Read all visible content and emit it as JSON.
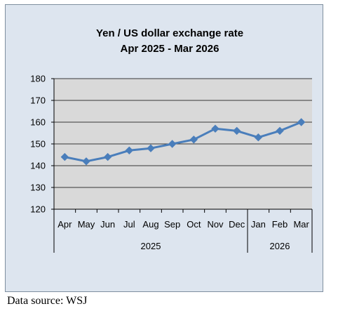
{
  "chart_data": {
    "type": "line",
    "title_line1": "Yen / US dollar exchange rate",
    "title_line2": "Apr 2025  - Mar 2026",
    "categories": [
      "Apr",
      "May",
      "Jun",
      "Jul",
      "Aug",
      "Sep",
      "Oct",
      "Nov",
      "Dec",
      "Jan",
      "Feb",
      "Mar"
    ],
    "groups": [
      {
        "label": "2025",
        "span": 9
      },
      {
        "label": "2026",
        "span": 3
      }
    ],
    "values": [
      144,
      142,
      144,
      147,
      148,
      150,
      152,
      157,
      156,
      153,
      156,
      160
    ],
    "ylim": [
      120,
      180
    ],
    "yticks": [
      120,
      130,
      140,
      150,
      160,
      170,
      180
    ],
    "grid": true,
    "line_color": "#4a7ebb",
    "plot_background": "#d9d9d9",
    "chart_background": "#dde5ef"
  },
  "footer": {
    "source": "Data source: WSJ"
  }
}
